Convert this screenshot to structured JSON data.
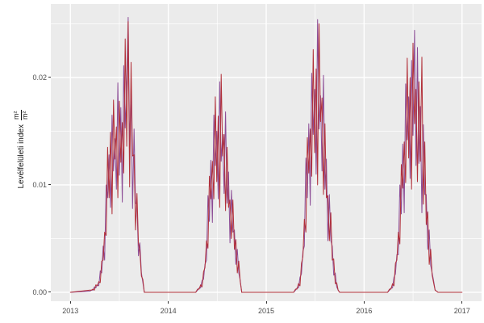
{
  "figure": {
    "background": "#FFFFFF",
    "panel_bg": "#EBEBEB",
    "grid_color": "#FFFFFF",
    "tick_label_color": "#4D4D4D",
    "axis_title_color": "#1A1A1A",
    "tick_mark_color": "#333333"
  },
  "y_axis": {
    "title_text": "Levélfelületi index",
    "title_frac_numerator": "m²",
    "title_frac_denominator": "m²",
    "tick_labels": [
      "0.00",
      "0.01",
      "0.02"
    ],
    "tick_values": [
      0,
      0.01,
      0.02
    ]
  },
  "x_axis": {
    "tick_labels": [
      "2013",
      "2014",
      "2015",
      "2016",
      "2017"
    ],
    "tick_values": [
      2013,
      2014,
      2015,
      2016,
      2017
    ]
  },
  "chart_data": {
    "type": "line",
    "title": "",
    "xlabel": "",
    "ylabel": "Levélfelületi index (m²/m²)",
    "xlim": [
      2012.8,
      2017.2
    ],
    "ylim": [
      -0.00083,
      0.02684
    ],
    "grid": "on",
    "legend": "none",
    "x_major_gridlines": [
      2013,
      2014,
      2015,
      2016,
      2017
    ],
    "x_minor_gridlines": [
      2013.5,
      2014.5,
      2015.5,
      2016.5
    ],
    "y_major_gridlines": [
      0,
      0.01,
      0.02
    ],
    "y_minor_gridlines": [
      0.005,
      0.015,
      0.025
    ],
    "values_unit": "m2/m2, stored in thousandths (multiply by 0.001)",
    "x": [
      2013.0,
      2013.2,
      2013.215,
      2013.23,
      2013.245,
      2013.26,
      2013.275,
      2013.29,
      2013.305,
      2013.32,
      2013.335,
      2013.35,
      2013.365,
      2013.38,
      2013.395,
      2013.41,
      2013.425,
      2013.44,
      2013.455,
      2013.47,
      2013.485,
      2013.5,
      2013.515,
      2013.53,
      2013.545,
      2013.56,
      2013.575,
      2013.59,
      2013.605,
      2013.62,
      2013.635,
      2013.65,
      2013.665,
      2013.68,
      2013.695,
      2013.71,
      2013.725,
      2013.74,
      2013.755,
      2014.28,
      2014.3,
      2014.315,
      2014.33,
      2014.345,
      2014.36,
      2014.375,
      2014.39,
      2014.405,
      2014.42,
      2014.435,
      2014.45,
      2014.465,
      2014.48,
      2014.495,
      2014.51,
      2014.525,
      2014.54,
      2014.555,
      2014.57,
      2014.585,
      2014.6,
      2014.615,
      2014.63,
      2014.645,
      2014.66,
      2014.675,
      2014.69,
      2014.705,
      2014.72,
      2014.735,
      2014.75,
      2015.28,
      2015.3,
      2015.315,
      2015.33,
      2015.345,
      2015.36,
      2015.375,
      2015.39,
      2015.405,
      2015.42,
      2015.435,
      2015.45,
      2015.465,
      2015.48,
      2015.495,
      2015.51,
      2015.525,
      2015.54,
      2015.555,
      2015.57,
      2015.585,
      2015.6,
      2015.615,
      2015.63,
      2015.645,
      2015.66,
      2015.675,
      2015.69,
      2015.705,
      2015.72,
      2015.735,
      2015.75,
      2016.24,
      2016.26,
      2016.275,
      2016.29,
      2016.305,
      2016.32,
      2016.335,
      2016.35,
      2016.365,
      2016.38,
      2016.395,
      2016.41,
      2016.425,
      2016.44,
      2016.455,
      2016.47,
      2016.485,
      2016.5,
      2016.515,
      2016.53,
      2016.545,
      2016.56,
      2016.575,
      2016.59,
      2016.605,
      2016.62,
      2016.635,
      2016.65,
      2016.665,
      2016.68,
      2016.695,
      2016.71,
      2016.725,
      2016.74,
      2016.755,
      2017.0
    ],
    "series": [
      {
        "name": "lai-purple",
        "color": "#8C4C96",
        "values": [
          0,
          0.1,
          0.2,
          0.2,
          0.5,
          0.4,
          0.7,
          0.6,
          2.0,
          1.8,
          4.3,
          3.0,
          10.0,
          8.8,
          12.8,
          7.9,
          16.5,
          11.3,
          14.3,
          9.6,
          19.5,
          10.9,
          17.2,
          8.4,
          21.1,
          15.3,
          19.8,
          25.6,
          13.5,
          19.1,
          7.8,
          15.2,
          8.3,
          8.2,
          3.4,
          4.6,
          1.8,
          0.9,
          0,
          0,
          0.2,
          0.4,
          0.4,
          1.1,
          1.2,
          2.6,
          3.0,
          9.0,
          6.6,
          12.3,
          6.5,
          16.5,
          11.8,
          15.0,
          8.7,
          19.6,
          12.2,
          14.7,
          9.2,
          16.8,
          8.3,
          11.2,
          4.6,
          9.5,
          5.6,
          5.8,
          2.6,
          4.0,
          1.8,
          1.1,
          0,
          0,
          0.2,
          0.4,
          0.4,
          1.4,
          1.7,
          3.8,
          4.3,
          12.5,
          8.8,
          15.7,
          8.1,
          20.4,
          14.7,
          18.9,
          11.0,
          25.4,
          15.2,
          18.3,
          11.3,
          20.2,
          9.6,
          12.4,
          4.8,
          9.1,
          4.8,
          4.3,
          1.6,
          1.8,
          0.5,
          0.2,
          0,
          0,
          0.2,
          0.4,
          0.4,
          1.4,
          1.7,
          3.5,
          3.5,
          10.0,
          7.3,
          13.8,
          7.4,
          19.4,
          14.2,
          18.2,
          10.6,
          21.6,
          14.6,
          24.4,
          11.8,
          22.8,
          12.0,
          17.3,
          7.4,
          15.6,
          9.1,
          9.1,
          4.0,
          5.8,
          2.5,
          1.8,
          1.1,
          0.2,
          0.1,
          0,
          0
        ]
      },
      {
        "name": "lai-red",
        "color": "#B23039",
        "values": [
          0,
          0.2,
          0.2,
          0.3,
          0.2,
          0.7,
          0.6,
          1.0,
          0.9,
          2.9,
          3.0,
          5.6,
          5.3,
          13.5,
          8.8,
          14.9,
          7.3,
          17.9,
          12.4,
          15.4,
          8.8,
          17.8,
          12.1,
          15.8,
          11.1,
          23.6,
          13.6,
          25.2,
          9.8,
          21.4,
          12.7,
          12.8,
          5.8,
          9.2,
          4.6,
          3.8,
          1.5,
          1.2,
          0,
          0,
          0.3,
          0.3,
          0.7,
          0.5,
          1.9,
          2.3,
          4.8,
          4.1,
          10.8,
          8.7,
          12.2,
          8.7,
          18.2,
          10.3,
          16.4,
          7.9,
          20.3,
          12.7,
          14.7,
          7.6,
          13.5,
          7.9,
          8.6,
          5.0,
          8.6,
          4.0,
          4.9,
          1.8,
          2.9,
          1.0,
          0,
          0,
          0.3,
          0.3,
          0.8,
          0.6,
          2.7,
          3.3,
          6.8,
          5.6,
          14.4,
          11.1,
          15.2,
          10.8,
          22.6,
          13.0,
          20.8,
          10.0,
          25.0,
          15.9,
          18.1,
          9.1,
          15.7,
          8.8,
          9.0,
          4.8,
          7.4,
          3.0,
          3.1,
          0.8,
          0.9,
          0.2,
          0,
          0,
          0.3,
          0.3,
          0.8,
          0.6,
          2.7,
          3.0,
          5.6,
          4.5,
          11.9,
          9.7,
          14.0,
          10.2,
          21.8,
          12.5,
          20.0,
          9.6,
          23.2,
          15.7,
          18.9,
          10.3,
          19.6,
          12.2,
          21.9,
          8.2,
          14.0,
          6.3,
          7.5,
          2.6,
          4.0,
          1.6,
          0.9,
          0.2,
          0.1,
          0,
          0
        ]
      }
    ]
  }
}
